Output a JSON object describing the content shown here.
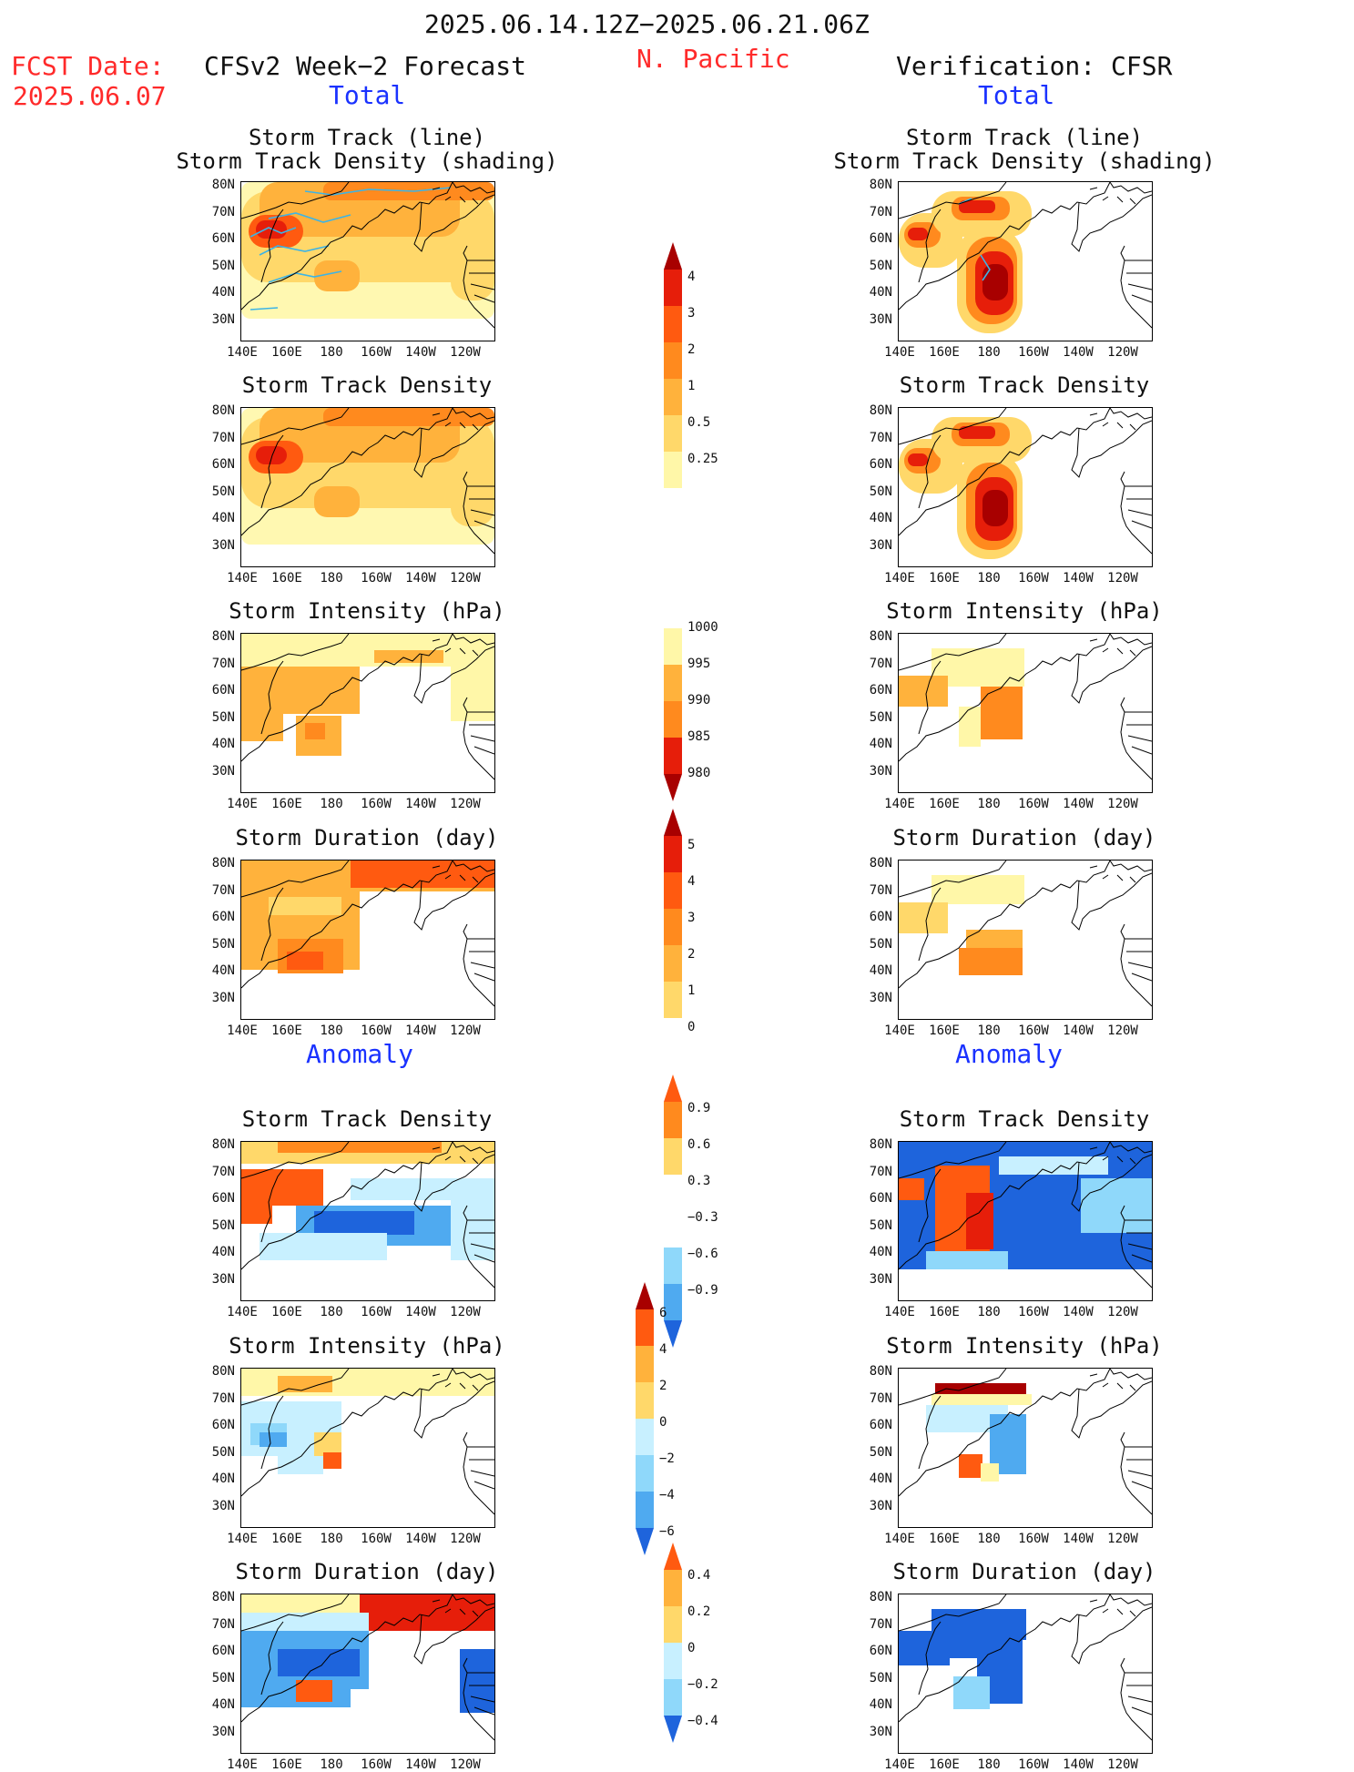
{
  "header": {
    "valid_period": "2025.06.14.12Z−2025.06.21.06Z",
    "fcst_label": "FCST Date:",
    "fcst_date": "2025.06.07",
    "region": "N. Pacific",
    "left_title": "CFSv2 Week−2 Forecast",
    "right_title": "Verification: CFSR",
    "total_label": "Total",
    "anomaly_label": "Anomaly"
  },
  "panel_titles": {
    "track_line": "Storm Track (line)",
    "track_shading": "Storm Track Density (shading)",
    "density": "Storm Track Density",
    "intensity": "Storm Intensity (hPa)",
    "duration": "Storm Duration (day)"
  },
  "axes": {
    "lat_ticks": [
      "80N",
      "70N",
      "60N",
      "50N",
      "40N",
      "30N"
    ],
    "lon_ticks": [
      "140E",
      "160E",
      "180",
      "160W",
      "140W",
      "120W"
    ]
  },
  "colors": {
    "pos": [
      "#fff7a8",
      "#ffd86a",
      "#ffb23c",
      "#ff8a1e",
      "#ff5a10",
      "#e61e0a",
      "#a80000"
    ],
    "neg": [
      "#c8f0ff",
      "#8fd8fa",
      "#4faaf0",
      "#1e64dc",
      "#0a3cb4"
    ],
    "track_line": "#3cb4e6",
    "title_red": "#ff2a2a",
    "title_blue": "#1a32ff"
  },
  "colorbars": {
    "density_total": [
      "4",
      "3",
      "2",
      "1",
      "0.5",
      "0.25"
    ],
    "intensity_total": [
      "1000",
      "995",
      "990",
      "985",
      "980"
    ],
    "duration_total": [
      "5",
      "4",
      "3",
      "2",
      "1",
      "0"
    ],
    "density_anom": [
      "0.9",
      "0.6",
      "0.3",
      "−0.3",
      "−0.6",
      "−0.9"
    ],
    "intensity_anom": [
      "6",
      "4",
      "2",
      "0",
      "−2",
      "−4",
      "−6"
    ],
    "duration_anom": [
      "0.4",
      "0.2",
      "0",
      "−0.2",
      "−0.4"
    ]
  },
  "chart_data": [
    {
      "type": "heatmap",
      "title": "Storm Track (line) / Storm Track Density (shading)",
      "source": "CFSv2 Week-2 Forecast",
      "section": "Total",
      "levels": [
        0.25,
        0.5,
        1,
        2,
        3,
        4
      ]
    },
    {
      "type": "heatmap",
      "title": "Storm Track (line) / Storm Track Density (shading)",
      "source": "Verification: CFSR",
      "section": "Total",
      "levels": [
        0.25,
        0.5,
        1,
        2,
        3,
        4
      ]
    },
    {
      "type": "heatmap",
      "title": "Storm Track Density",
      "source": "CFSv2 Week-2 Forecast",
      "section": "Total",
      "levels": [
        0.25,
        0.5,
        1,
        2,
        3,
        4
      ]
    },
    {
      "type": "heatmap",
      "title": "Storm Track Density",
      "source": "Verification: CFSR",
      "section": "Total",
      "levels": [
        0.25,
        0.5,
        1,
        2,
        3,
        4
      ]
    },
    {
      "type": "heatmap",
      "title": "Storm Intensity (hPa)",
      "source": "CFSv2 Week-2 Forecast",
      "section": "Total",
      "levels": [
        1000,
        995,
        990,
        985,
        980
      ]
    },
    {
      "type": "heatmap",
      "title": "Storm Intensity (hPa)",
      "source": "Verification: CFSR",
      "section": "Total",
      "levels": [
        1000,
        995,
        990,
        985,
        980
      ]
    },
    {
      "type": "heatmap",
      "title": "Storm Duration (day)",
      "source": "CFSv2 Week-2 Forecast",
      "section": "Total",
      "levels": [
        0,
        1,
        2,
        3,
        4,
        5
      ]
    },
    {
      "type": "heatmap",
      "title": "Storm Duration (day)",
      "source": "Verification: CFSR",
      "section": "Total",
      "levels": [
        0,
        1,
        2,
        3,
        4,
        5
      ]
    },
    {
      "type": "heatmap",
      "title": "Storm Track Density",
      "source": "CFSv2 Week-2 Forecast",
      "section": "Anomaly",
      "levels": [
        -0.9,
        -0.6,
        -0.3,
        0.3,
        0.6,
        0.9
      ]
    },
    {
      "type": "heatmap",
      "title": "Storm Track Density",
      "source": "Verification: CFSR",
      "section": "Anomaly",
      "levels": [
        -0.9,
        -0.6,
        -0.3,
        0.3,
        0.6,
        0.9
      ]
    },
    {
      "type": "heatmap",
      "title": "Storm Intensity (hPa)",
      "source": "CFSv2 Week-2 Forecast",
      "section": "Anomaly",
      "levels": [
        -6,
        -4,
        -2,
        0,
        2,
        4,
        6
      ]
    },
    {
      "type": "heatmap",
      "title": "Storm Intensity (hPa)",
      "source": "Verification: CFSR",
      "section": "Anomaly",
      "levels": [
        -6,
        -4,
        -2,
        0,
        2,
        4,
        6
      ]
    },
    {
      "type": "heatmap",
      "title": "Storm Duration (day)",
      "source": "CFSv2 Week-2 Forecast",
      "section": "Anomaly",
      "levels": [
        -0.4,
        -0.2,
        0,
        0.2,
        0.4
      ]
    },
    {
      "type": "heatmap",
      "title": "Storm Duration (day)",
      "source": "Verification: CFSR",
      "section": "Anomaly",
      "levels": [
        -0.4,
        -0.2,
        0,
        0.2,
        0.4
      ]
    }
  ]
}
